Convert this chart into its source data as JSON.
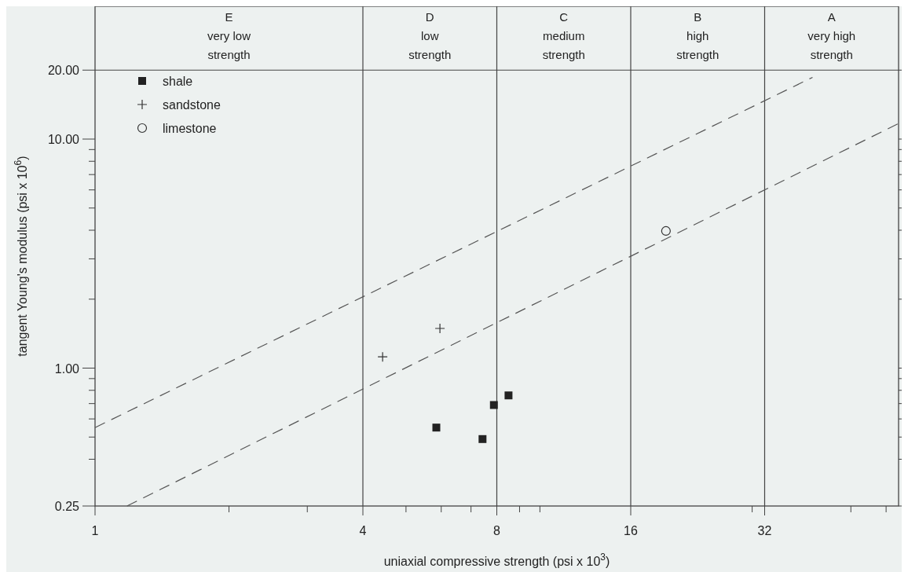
{
  "chart_data": {
    "type": "scatter",
    "xlabel": "uniaxial compressive strength (psi x 10$^{3}$)",
    "ylabel": "tangent Young's modulus (psi x 10$^{6}$)",
    "log": "xy",
    "xlim": [
      1,
      64
    ],
    "ylim": [
      0.25,
      38
    ],
    "xticks": [
      1,
      {
        "value": 2,
        "label": null
      },
      {
        "value": 3,
        "label": null
      },
      4,
      {
        "value": 5,
        "label": null
      },
      {
        "value": 6,
        "label": null
      },
      {
        "value": 7,
        "label": null
      },
      8,
      {
        "value": 9,
        "label": null
      },
      {
        "value": 10,
        "label": null
      },
      16,
      {
        "value": 30,
        "label": null
      },
      32,
      {
        "value": 50,
        "label": null
      },
      {
        "value": 60,
        "label": null
      }
    ],
    "yticks": [
      {
        "value": 0.25,
        "label": "0.25"
      },
      {
        "value": 0.4,
        "label": null
      },
      {
        "value": 0.5,
        "label": null
      },
      {
        "value": 0.6,
        "label": null
      },
      {
        "value": 0.7,
        "label": null
      },
      {
        "value": 0.8,
        "label": null
      },
      {
        "value": 0.9,
        "label": null
      },
      {
        "value": 1,
        "label": "1.00"
      },
      {
        "value": 2,
        "label": null
      },
      {
        "value": 3,
        "label": null
      },
      {
        "value": 4,
        "label": null
      },
      {
        "value": 5,
        "label": null
      },
      {
        "value": 6,
        "label": null
      },
      {
        "value": 7,
        "label": null
      },
      {
        "value": 8,
        "label": null
      },
      {
        "value": 9,
        "label": null
      },
      {
        "value": 10,
        "label": "10.00"
      },
      {
        "value": 20,
        "label": "20.00"
      }
    ],
    "grid": false,
    "legend": "top left",
    "ref_lines": [
      {
        "axis": "x",
        "value": 4
      },
      {
        "axis": "x",
        "value": 8
      },
      {
        "axis": "x",
        "value": 16
      },
      {
        "axis": "x",
        "value": 32
      },
      {
        "axis": "y",
        "value": 20
      }
    ],
    "annotations": [
      "E\nvery low\nstrength",
      "D\nlow\nstrength",
      "C\nmedium\nstrength",
      "B\nhigh\nstrength",
      "A\nvery high\nstrength"
    ],
    "series": [
      {
        "name": "shale",
        "marker": "square",
        "color": "#222222",
        "x": [
          5.85,
          7.43,
          7.88,
          8.5
        ],
        "values": [
          0.55,
          0.49,
          0.69,
          0.76
        ]
      },
      {
        "name": "sandstone",
        "marker": "cross",
        "color": "#333333",
        "x": [
          4.43,
          5.96
        ],
        "values": [
          1.12,
          1.49
        ]
      },
      {
        "name": "limestone",
        "marker": "circle",
        "color": "#333333",
        "x": [
          19.2
        ],
        "values": [
          3.97
        ]
      },
      {
        "type": "line",
        "line_style": "dashed",
        "color": "#555555",
        "x": [
          1,
          41
        ],
        "values": [
          0.55,
          18.6
        ]
      },
      {
        "type": "line",
        "line_style": "dashed",
        "color": "#555555",
        "x": [
          1.18,
          64
        ],
        "values": [
          0.25,
          11.7
        ]
      }
    ]
  }
}
